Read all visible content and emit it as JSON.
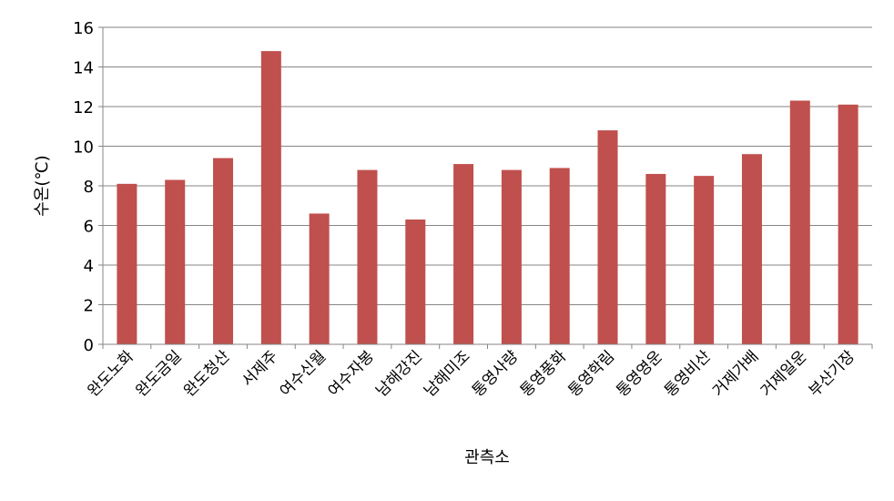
{
  "chart_data": {
    "type": "bar",
    "title": "",
    "xlabel": "관측소",
    "ylabel": "수온(℃)",
    "ylim": [
      0,
      16
    ],
    "yticks": [
      0,
      2,
      4,
      6,
      8,
      10,
      12,
      14,
      16
    ],
    "grid": true,
    "legend": "none",
    "bar_color": "#C0504D",
    "categories": [
      "완도노화",
      "완도금일",
      "완도청산",
      "서제주",
      "여수신월",
      "여수자봉",
      "남해강진",
      "남해미조",
      "통영사량",
      "통영풍화",
      "통영학림",
      "통영영운",
      "통영비산",
      "거제가배",
      "거제일운",
      "부산기장"
    ],
    "values": [
      8.1,
      8.3,
      9.4,
      14.8,
      6.6,
      8.8,
      6.3,
      9.1,
      8.8,
      8.9,
      10.8,
      8.6,
      8.5,
      9.6,
      12.3,
      12.1
    ]
  }
}
